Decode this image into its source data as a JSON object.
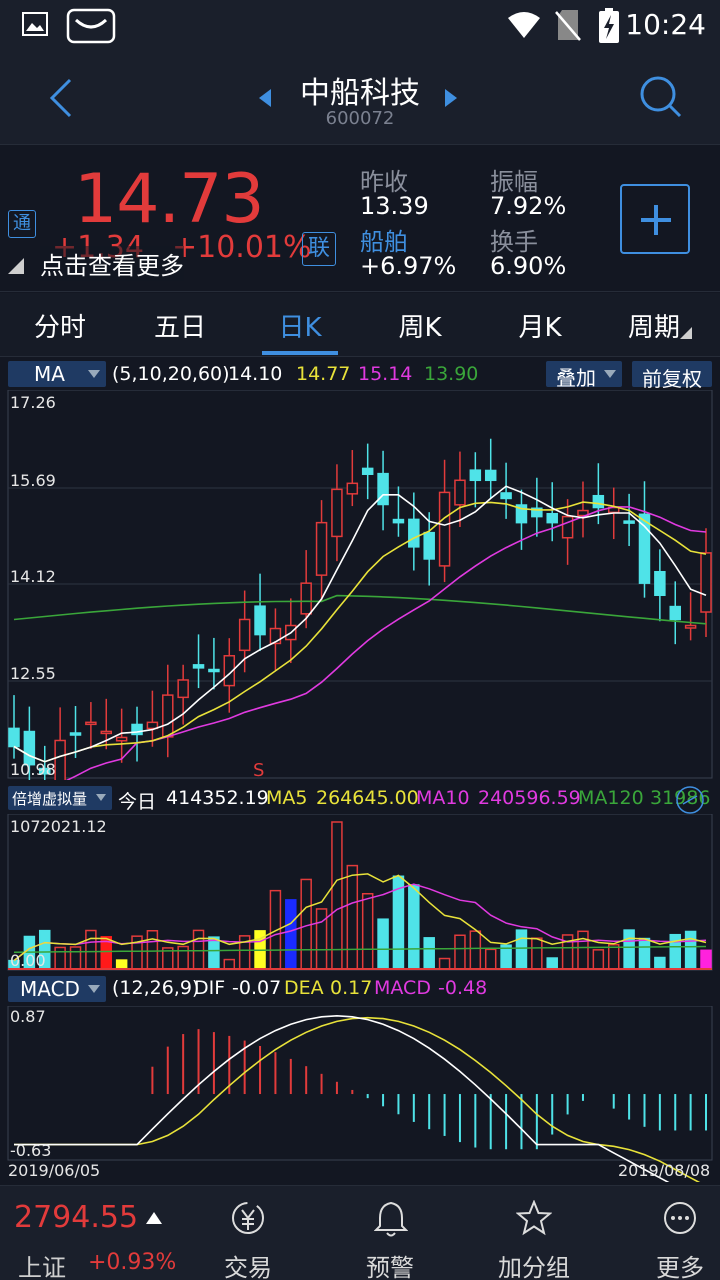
{
  "status": {
    "time": "10:24"
  },
  "header": {
    "stock_name": "中船科技",
    "stock_code": "600072"
  },
  "quote": {
    "price": "14.73",
    "change": "+1.34",
    "change_pct": "+10.01%",
    "tong_badge": "通",
    "lian_badge": "联",
    "tap_hint": "点击查看更多",
    "prev_close_label": "昨收",
    "prev_close": "13.39",
    "amplitude_label": "振幅",
    "amplitude": "7.92%",
    "sector_label": "船舶",
    "sector_change": "+6.97%",
    "turnover_label": "换手",
    "turnover": "6.90%"
  },
  "tabs": [
    "分时",
    "五日",
    "日K",
    "周K",
    "月K",
    "周期"
  ],
  "active_tab": "日K",
  "ma_bar": {
    "indicator": "MA",
    "params": "(5,10,20,60)",
    "ma5": "14.10",
    "ma10": "14.77",
    "ma20": "15.14",
    "ma60": "13.90",
    "overlay_label": "叠加",
    "adjust_label": "前复权",
    "price_ticks": [
      "17.26",
      "15.69",
      "14.12",
      "12.55",
      "10.98"
    ],
    "signal": "S"
  },
  "volume_bar": {
    "indicator": "倍增虚拟量",
    "today_label": "今日",
    "today": "414352.19",
    "ma5_label": "MA5",
    "ma5": "264645.00",
    "ma10_label": "MA10",
    "ma10": "240596.59",
    "ma120_label": "MA120",
    "ma120": "31986",
    "top_tick": "1072021.12",
    "bottom_tick": "0.00"
  },
  "macd_bar": {
    "indicator": "MACD",
    "params": "(12,26,9)",
    "dif_label": "DIF",
    "dif": "-0.07",
    "dea_label": "DEA",
    "dea": "0.17",
    "macd_label": "MACD",
    "macd": "-0.48",
    "top_tick": "0.87",
    "bottom_tick": "-0.63",
    "start_date": "2019/06/05",
    "end_date": "2019/08/08"
  },
  "bottom_nav": {
    "index_value": "2794.55",
    "index_name": "上证",
    "index_change": "+0.93%",
    "items": [
      "交易",
      "预警",
      "加分组",
      "更多"
    ]
  },
  "colors": {
    "up": "#e23b3b",
    "down": "#4fe3e8",
    "ma5": "#ffffff",
    "ma10": "#e8e23a",
    "ma20": "#e03ae0",
    "ma60": "#3aa63a",
    "accent": "#3f8fe0"
  }
}
